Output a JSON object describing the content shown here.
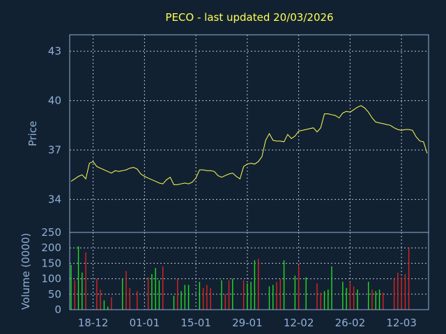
{
  "chart_data": [
    {
      "type": "line",
      "title": "PECO - last updated 20/03/2026",
      "ylabel": "Price",
      "ylim": [
        32,
        44
      ],
      "yticks": [
        "43",
        "40",
        "37",
        "34"
      ],
      "ytick_values": [
        43,
        40,
        37,
        34
      ],
      "xticks": [
        "18-12",
        "01-01",
        "15-01",
        "29-01",
        "12-02",
        "26-02",
        "12-03"
      ],
      "xtick_index": [
        6,
        20,
        34,
        48,
        62,
        76,
        90
      ],
      "grid": true,
      "line_color": "#ffff55",
      "series": [
        {
          "values": [
            35.1,
            35.25,
            35.4,
            35.5,
            35.25,
            36.2,
            36.3,
            36.0,
            35.9,
            35.8,
            35.7,
            35.6,
            35.75,
            35.7,
            35.75,
            35.8,
            35.9,
            35.95,
            35.85,
            35.55,
            35.4,
            35.3,
            35.2,
            35.1,
            35.0,
            34.95,
            35.2,
            35.35,
            34.9,
            34.9,
            34.95,
            35.0,
            34.95,
            35.05,
            35.3,
            35.8,
            35.8,
            35.75,
            35.75,
            35.7,
            35.45,
            35.35,
            35.45,
            35.55,
            35.6,
            35.4,
            35.25,
            36.0,
            36.15,
            36.2,
            36.15,
            36.3,
            36.6,
            37.6,
            38.0,
            37.6,
            37.55,
            37.55,
            37.5,
            37.95,
            37.7,
            37.85,
            38.15,
            38.2,
            38.25,
            38.3,
            38.35,
            38.1,
            38.35,
            39.2,
            39.2,
            39.15,
            39.1,
            38.95,
            39.25,
            39.35,
            39.3,
            39.45,
            39.6,
            39.7,
            39.55,
            39.3,
            38.95,
            38.7,
            38.65,
            38.6,
            38.55,
            38.5,
            38.35,
            38.25,
            38.2,
            38.25,
            38.25,
            38.2,
            37.8,
            37.55,
            37.5,
            36.8
          ]
        }
      ]
    },
    {
      "type": "bar",
      "ylabel": "Volume (0000)",
      "ylim": [
        0,
        250
      ],
      "yticks": [
        "250",
        "200",
        "150",
        "100",
        "50",
        "0"
      ],
      "ytick_values": [
        250,
        200,
        150,
        100,
        50,
        0
      ],
      "grid": true,
      "up_color": "#22dd22",
      "down_color": "#dd2222",
      "bars": [
        {
          "v": 145,
          "d": "up"
        },
        {
          "v": 95,
          "d": "down"
        },
        {
          "v": 205,
          "d": "up"
        },
        {
          "v": 120,
          "d": "up"
        },
        {
          "v": 185,
          "d": "down"
        },
        {
          "v": 0,
          "d": "up"
        },
        {
          "v": 0,
          "d": "up"
        },
        {
          "v": 100,
          "d": "down"
        },
        {
          "v": 65,
          "d": "down"
        },
        {
          "v": 30,
          "d": "up"
        },
        {
          "v": 10,
          "d": "up"
        },
        {
          "v": 40,
          "d": "down"
        },
        {
          "v": 0,
          "d": "up"
        },
        {
          "v": 0,
          "d": "up"
        },
        {
          "v": 100,
          "d": "up"
        },
        {
          "v": 125,
          "d": "down"
        },
        {
          "v": 70,
          "d": "down"
        },
        {
          "v": 0,
          "d": "up"
        },
        {
          "v": 60,
          "d": "down"
        },
        {
          "v": 0,
          "d": "up"
        },
        {
          "v": 0,
          "d": "up"
        },
        {
          "v": 105,
          "d": "down"
        },
        {
          "v": 115,
          "d": "up"
        },
        {
          "v": 135,
          "d": "up"
        },
        {
          "v": 95,
          "d": "up"
        },
        {
          "v": 140,
          "d": "down"
        },
        {
          "v": 0,
          "d": "up"
        },
        {
          "v": 0,
          "d": "up"
        },
        {
          "v": 45,
          "d": "up"
        },
        {
          "v": 100,
          "d": "down"
        },
        {
          "v": 60,
          "d": "up"
        },
        {
          "v": 80,
          "d": "up"
        },
        {
          "v": 80,
          "d": "up"
        },
        {
          "v": 0,
          "d": "up"
        },
        {
          "v": 0,
          "d": "up"
        },
        {
          "v": 90,
          "d": "up"
        },
        {
          "v": 70,
          "d": "down"
        },
        {
          "v": 80,
          "d": "down"
        },
        {
          "v": 70,
          "d": "down"
        },
        {
          "v": 0,
          "d": "up"
        },
        {
          "v": 0,
          "d": "up"
        },
        {
          "v": 95,
          "d": "up"
        },
        {
          "v": 50,
          "d": "down"
        },
        {
          "v": 95,
          "d": "down"
        },
        {
          "v": 100,
          "d": "up"
        },
        {
          "v": 0,
          "d": "up"
        },
        {
          "v": 0,
          "d": "up"
        },
        {
          "v": 95,
          "d": "down"
        },
        {
          "v": 85,
          "d": "up"
        },
        {
          "v": 90,
          "d": "up"
        },
        {
          "v": 160,
          "d": "up"
        },
        {
          "v": 165,
          "d": "down"
        },
        {
          "v": 0,
          "d": "up"
        },
        {
          "v": 0,
          "d": "up"
        },
        {
          "v": 75,
          "d": "up"
        },
        {
          "v": 80,
          "d": "up"
        },
        {
          "v": 90,
          "d": "down"
        },
        {
          "v": 100,
          "d": "down"
        },
        {
          "v": 160,
          "d": "up"
        },
        {
          "v": 0,
          "d": "up"
        },
        {
          "v": 0,
          "d": "up"
        },
        {
          "v": 110,
          "d": "up"
        },
        {
          "v": 145,
          "d": "down"
        },
        {
          "v": 0,
          "d": "up"
        },
        {
          "v": 105,
          "d": "up"
        },
        {
          "v": 0,
          "d": "up"
        },
        {
          "v": 0,
          "d": "up"
        },
        {
          "v": 85,
          "d": "down"
        },
        {
          "v": 55,
          "d": "down"
        },
        {
          "v": 60,
          "d": "up"
        },
        {
          "v": 65,
          "d": "up"
        },
        {
          "v": 140,
          "d": "up"
        },
        {
          "v": 0,
          "d": "up"
        },
        {
          "v": 0,
          "d": "up"
        },
        {
          "v": 90,
          "d": "up"
        },
        {
          "v": 70,
          "d": "up"
        },
        {
          "v": 90,
          "d": "down"
        },
        {
          "v": 75,
          "d": "down"
        },
        {
          "v": 65,
          "d": "up"
        },
        {
          "v": 0,
          "d": "up"
        },
        {
          "v": 0,
          "d": "up"
        },
        {
          "v": 90,
          "d": "up"
        },
        {
          "v": 65,
          "d": "down"
        },
        {
          "v": 60,
          "d": "up"
        },
        {
          "v": 65,
          "d": "up"
        },
        {
          "v": 55,
          "d": "down"
        },
        {
          "v": 0,
          "d": "up"
        },
        {
          "v": 0,
          "d": "up"
        },
        {
          "v": 100,
          "d": "down"
        },
        {
          "v": 120,
          "d": "down"
        },
        {
          "v": 105,
          "d": "down"
        },
        {
          "v": 115,
          "d": "down"
        },
        {
          "v": 200,
          "d": "down"
        }
      ]
    }
  ]
}
